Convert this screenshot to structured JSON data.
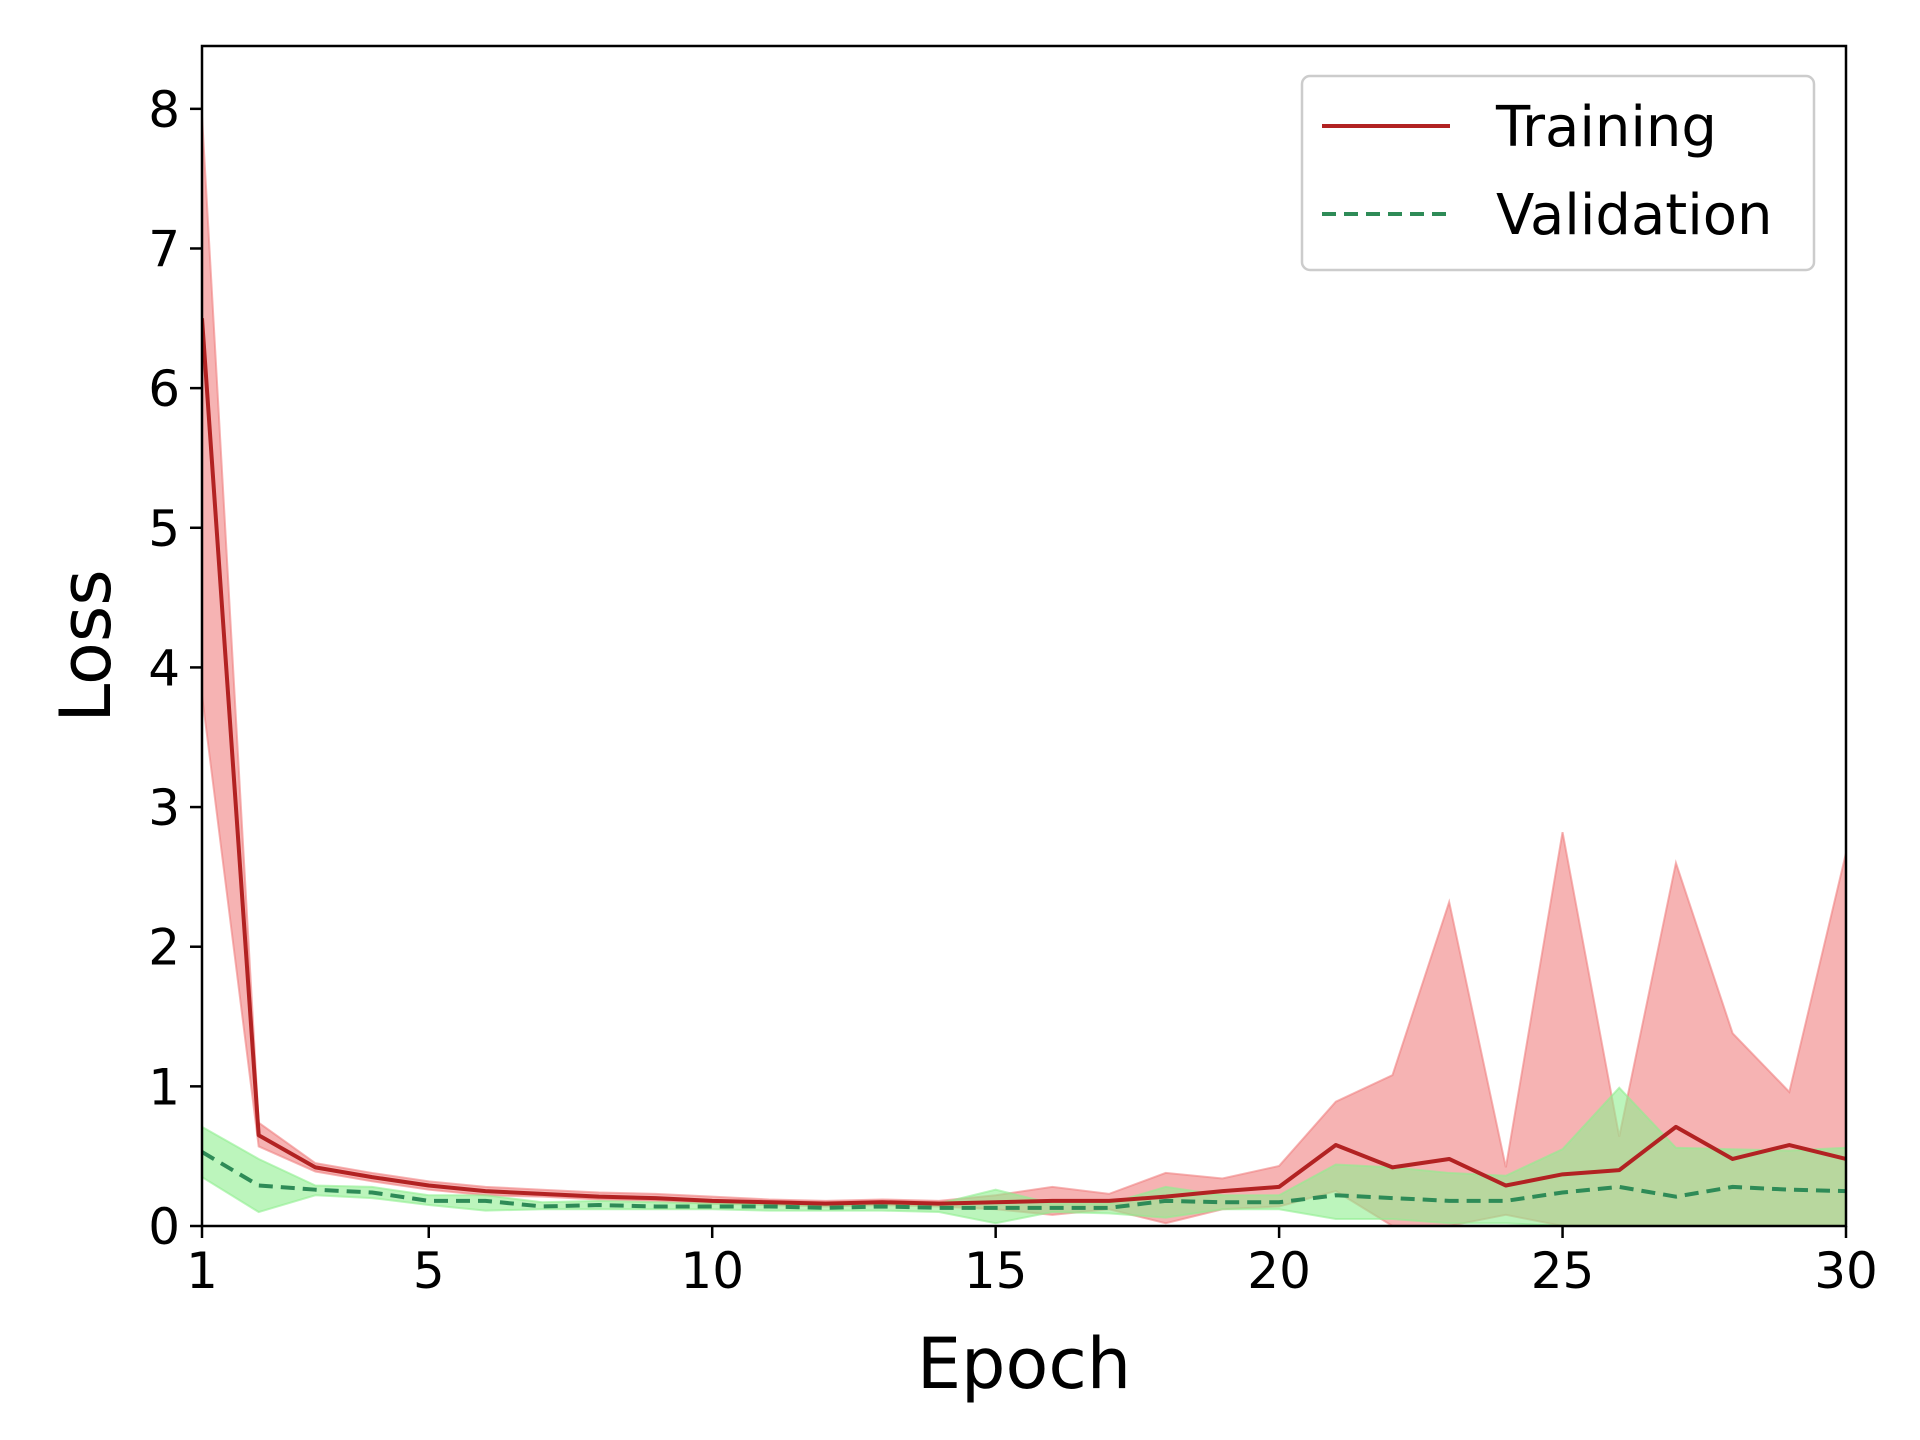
{
  "chart_data": {
    "type": "line",
    "title": "",
    "xlabel": "Epoch",
    "ylabel": "Loss",
    "xlim": [
      1,
      30
    ],
    "ylim": [
      0,
      8.45
    ],
    "xticks": [
      1,
      5,
      10,
      15,
      20,
      25,
      30
    ],
    "yticks": [
      0,
      1,
      2,
      3,
      4,
      5,
      6,
      7,
      8
    ],
    "grid": false,
    "legend_position": "top-right",
    "x": [
      1,
      2,
      3,
      4,
      5,
      6,
      7,
      8,
      9,
      10,
      11,
      12,
      13,
      14,
      15,
      16,
      17,
      18,
      19,
      20,
      21,
      22,
      23,
      24,
      25,
      26,
      27,
      28,
      29,
      30
    ],
    "series": [
      {
        "name": "Training",
        "line_style": "solid",
        "color": "#b22222",
        "band_color": "#f08080",
        "values": [
          6.5,
          0.65,
          0.42,
          0.35,
          0.29,
          0.25,
          0.23,
          0.21,
          0.2,
          0.18,
          0.17,
          0.16,
          0.17,
          0.16,
          0.17,
          0.18,
          0.18,
          0.21,
          0.25,
          0.28,
          0.58,
          0.42,
          0.48,
          0.29,
          0.37,
          0.4,
          0.71,
          0.48,
          0.58,
          0.48
        ],
        "lower": [
          3.8,
          0.57,
          0.39,
          0.32,
          0.26,
          0.22,
          0.21,
          0.19,
          0.18,
          0.16,
          0.15,
          0.14,
          0.15,
          0.14,
          0.12,
          0.08,
          0.12,
          0.02,
          0.12,
          0.14,
          0.25,
          0.0,
          0.0,
          0.08,
          0.0,
          0.0,
          0.0,
          0.0,
          0.0,
          0.0
        ],
        "upper": [
          7.95,
          0.74,
          0.45,
          0.38,
          0.32,
          0.28,
          0.26,
          0.24,
          0.23,
          0.21,
          0.19,
          0.18,
          0.19,
          0.18,
          0.22,
          0.28,
          0.23,
          0.38,
          0.34,
          0.43,
          0.89,
          1.08,
          2.32,
          0.42,
          2.82,
          0.64,
          2.6,
          1.38,
          0.96,
          2.67
        ]
      },
      {
        "name": "Validation",
        "line_style": "dashed",
        "color": "#2e8b57",
        "band_color": "#90ee90",
        "values": [
          0.53,
          0.29,
          0.26,
          0.24,
          0.18,
          0.18,
          0.14,
          0.15,
          0.14,
          0.14,
          0.14,
          0.13,
          0.14,
          0.13,
          0.13,
          0.13,
          0.13,
          0.18,
          0.17,
          0.17,
          0.22,
          0.2,
          0.18,
          0.18,
          0.24,
          0.28,
          0.21,
          0.28,
          0.26,
          0.25
        ],
        "lower": [
          0.35,
          0.1,
          0.22,
          0.2,
          0.15,
          0.11,
          0.12,
          0.12,
          0.12,
          0.12,
          0.11,
          0.11,
          0.11,
          0.1,
          0.02,
          0.1,
          0.09,
          0.06,
          0.12,
          0.12,
          0.05,
          0.05,
          0.02,
          0.02,
          0.0,
          0.0,
          0.0,
          0.0,
          0.0,
          0.0
        ],
        "upper": [
          0.71,
          0.48,
          0.29,
          0.28,
          0.22,
          0.22,
          0.17,
          0.18,
          0.17,
          0.16,
          0.16,
          0.15,
          0.16,
          0.16,
          0.26,
          0.16,
          0.16,
          0.28,
          0.22,
          0.22,
          0.44,
          0.42,
          0.38,
          0.36,
          0.55,
          0.99,
          0.56,
          0.55,
          0.54,
          0.56
        ]
      }
    ]
  }
}
